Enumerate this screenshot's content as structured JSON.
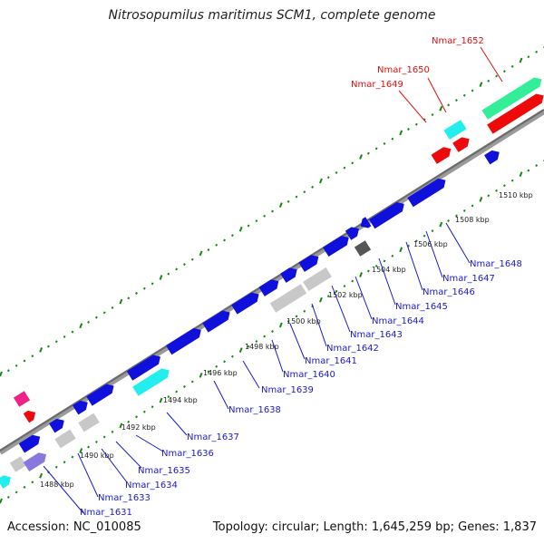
{
  "title": "Nitrosopumilus maritimus SCM1, complete genome",
  "footer": {
    "accession": "Accession: NC_010085",
    "topology": "Topology: circular; Length: 1,645,259 bp; Genes: 1,837"
  },
  "kbp_ticks": [
    "1488 kbp",
    "1490 kbp",
    "1492 kbp",
    "1494 kbp",
    "1496 kbp",
    "1498 kbp",
    "1500 kbp",
    "1502 kbp",
    "1504 kbp",
    "1506 kbp",
    "1508 kbp",
    "1510 kbp"
  ],
  "gene_labels_below": [
    "Nmar_1631",
    "Nmar_1633",
    "Nmar_1634",
    "Nmar_1635",
    "Nmar_1636",
    "Nmar_1637",
    "Nmar_1638",
    "Nmar_1639",
    "Nmar_1640",
    "Nmar_1641",
    "Nmar_1642",
    "Nmar_1643",
    "Nmar_1644",
    "Nmar_1645",
    "Nmar_1646",
    "Nmar_1647",
    "Nmar_1648"
  ],
  "gene_labels_above": [
    "Nmar_1649",
    "Nmar_1650",
    "Nmar_1652"
  ],
  "colors": {
    "blue_gene": "#1010dd",
    "gray_gene": "#c8c8c8",
    "cyan_gene": "#22eeee",
    "red_gene": "#ee0a0a",
    "green_gene": "#33ee99",
    "dark_gene": "#555555",
    "pink_gene": "#ee2288",
    "lilac_gene": "#8877dd",
    "tick_green": "#118811",
    "backbone": "#777777",
    "label_blue": "#1a1acc",
    "label_red": "#dd1111"
  }
}
